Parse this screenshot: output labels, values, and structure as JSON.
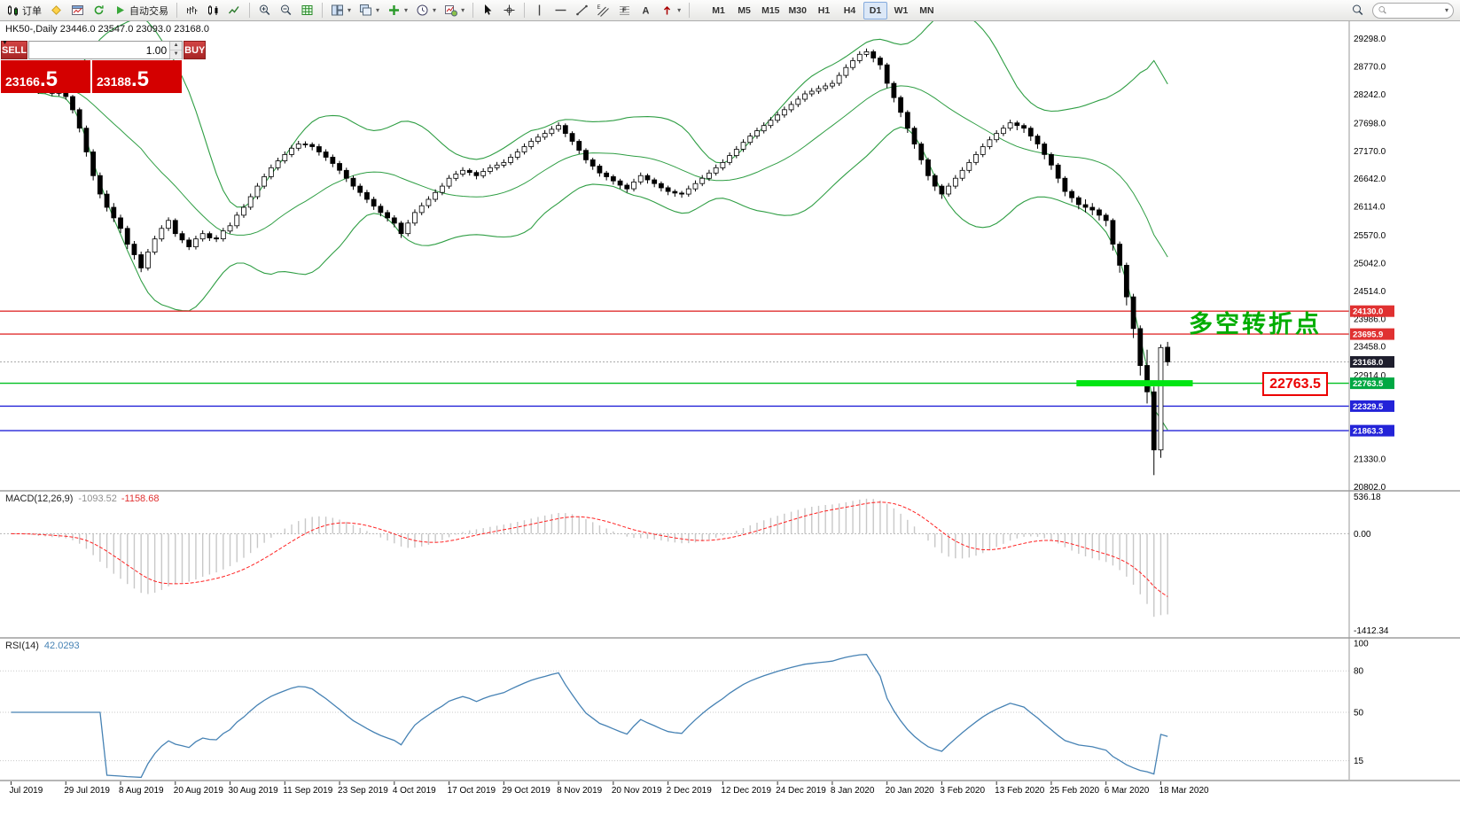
{
  "toolbar": {
    "new_order_label": "订单",
    "autotrading_label": "自动交易",
    "timeframes": [
      "M1",
      "M5",
      "M15",
      "M30",
      "H1",
      "H4",
      "D1",
      "W1",
      "MN"
    ],
    "active_timeframe": "D1",
    "search_value": ""
  },
  "trade_panel": {
    "sell_label": "SELL",
    "buy_label": "BUY",
    "volume": "1.00",
    "sell_price_small": "23166",
    "sell_price_big": ".5",
    "buy_price_small": "23188",
    "buy_price_big": ".5"
  },
  "chart": {
    "symbol_line": "HK50-,Daily  23446.0 23547.0 23093.0 23168.0",
    "annotation_text": "多空转折点",
    "annotation_color": "#00ad00",
    "callout_text": "22763.5",
    "macd_label": "MACD(12,26,9)",
    "macd_value_main": "-1093.52",
    "macd_value_signal": "-1158.68",
    "rsi_label": "RSI(14)",
    "rsi_value": "42.0293"
  },
  "chart_data": {
    "type": "candlestick",
    "symbol": "HK50-",
    "timeframe": "Daily",
    "last_ohlc": {
      "open": 23446.0,
      "high": 23547.0,
      "low": 23093.0,
      "close": 23168.0
    },
    "price_axis_ticks": [
      29298,
      28770,
      28242,
      27698,
      27170,
      26642,
      26114,
      25570,
      25042,
      24514,
      23986,
      23458,
      22914,
      21330,
      20802
    ],
    "x_labels": [
      "Jul 2019",
      "29 Jul 2019",
      "8 Aug 2019",
      "20 Aug 2019",
      "30 Aug 2019",
      "11 Sep 2019",
      "23 Sep 2019",
      "4 Oct 2019",
      "17 Oct 2019",
      "29 Oct 2019",
      "8 Nov 2019",
      "20 Nov 2019",
      "2 Dec 2019",
      "12 Dec 2019",
      "24 Dec 2019",
      "8 Jan 2020",
      "20 Jan 2020",
      "3 Feb 2020",
      "13 Feb 2020",
      "25 Feb 2020",
      "6 Mar 2020",
      "18 Mar 2020"
    ],
    "candles_per_label": 8,
    "candles": [
      [
        28560,
        28620,
        28460,
        28520
      ],
      [
        28520,
        28580,
        28400,
        28450
      ],
      [
        28450,
        28540,
        28410,
        28480
      ],
      [
        28480,
        28520,
        28310,
        28360
      ],
      [
        28360,
        28420,
        28250,
        28300
      ],
      [
        28300,
        28410,
        28260,
        28350
      ],
      [
        28350,
        28400,
        28210,
        28260
      ],
      [
        28260,
        28360,
        28210,
        28300
      ],
      [
        28300,
        28340,
        28140,
        28200
      ],
      [
        28200,
        28230,
        27880,
        27950
      ],
      [
        27950,
        27990,
        27520,
        27600
      ],
      [
        27600,
        27650,
        27060,
        27150
      ],
      [
        27150,
        27200,
        26610,
        26700
      ],
      [
        26700,
        26760,
        26270,
        26350
      ],
      [
        26350,
        26420,
        26020,
        26100
      ],
      [
        26100,
        26180,
        25820,
        25900
      ],
      [
        25900,
        25960,
        25610,
        25700
      ],
      [
        25700,
        25750,
        25310,
        25400
      ],
      [
        25400,
        25460,
        25110,
        25200
      ],
      [
        25200,
        25260,
        24870,
        24950
      ],
      [
        24950,
        25310,
        24900,
        25250
      ],
      [
        25250,
        25560,
        25200,
        25500
      ],
      [
        25500,
        25760,
        25450,
        25700
      ],
      [
        25700,
        25910,
        25650,
        25850
      ],
      [
        25850,
        25890,
        25540,
        25600
      ],
      [
        25600,
        25650,
        25420,
        25480
      ],
      [
        25480,
        25530,
        25290,
        25350
      ],
      [
        25350,
        25560,
        25300,
        25500
      ],
      [
        25500,
        25660,
        25450,
        25600
      ],
      [
        25600,
        25640,
        25460,
        25520
      ],
      [
        25520,
        25570,
        25440,
        25500
      ],
      [
        25500,
        25710,
        25450,
        25650
      ],
      [
        25650,
        25810,
        25600,
        25750
      ],
      [
        25750,
        26010,
        25700,
        25950
      ],
      [
        25950,
        26160,
        25900,
        26100
      ],
      [
        26100,
        26360,
        26050,
        26300
      ],
      [
        26300,
        26560,
        26250,
        26500
      ],
      [
        26500,
        26740,
        26450,
        26680
      ],
      [
        26680,
        26910,
        26630,
        26850
      ],
      [
        26850,
        27040,
        26800,
        26980
      ],
      [
        26980,
        27160,
        26930,
        27100
      ],
      [
        27100,
        27280,
        27050,
        27220
      ],
      [
        27220,
        27360,
        27170,
        27300
      ],
      [
        27300,
        27350,
        27230,
        27290
      ],
      [
        27290,
        27330,
        27180,
        27250
      ],
      [
        27250,
        27300,
        27080,
        27150
      ],
      [
        27150,
        27200,
        26980,
        27050
      ],
      [
        27050,
        27100,
        26860,
        26930
      ],
      [
        26930,
        26980,
        26730,
        26800
      ],
      [
        26800,
        26850,
        26580,
        26650
      ],
      [
        26650,
        26700,
        26430,
        26500
      ],
      [
        26500,
        26550,
        26310,
        26380
      ],
      [
        26380,
        26430,
        26180,
        26250
      ],
      [
        26250,
        26300,
        26050,
        26120
      ],
      [
        26120,
        26170,
        25930,
        26000
      ],
      [
        26000,
        26050,
        25830,
        25900
      ],
      [
        25900,
        25950,
        25720,
        25800
      ],
      [
        25800,
        25840,
        25520,
        25600
      ],
      [
        25600,
        25860,
        25550,
        25800
      ],
      [
        25800,
        26060,
        25750,
        26000
      ],
      [
        26000,
        26190,
        25950,
        26130
      ],
      [
        26130,
        26310,
        26080,
        26250
      ],
      [
        26250,
        26440,
        26200,
        26380
      ],
      [
        26380,
        26560,
        26330,
        26500
      ],
      [
        26500,
        26710,
        26450,
        26650
      ],
      [
        26650,
        26790,
        26600,
        26730
      ],
      [
        26730,
        26860,
        26680,
        26800
      ],
      [
        26800,
        26840,
        26700,
        26760
      ],
      [
        26760,
        26800,
        26630,
        26700
      ],
      [
        26700,
        26840,
        26650,
        26780
      ],
      [
        26780,
        26910,
        26730,
        26850
      ],
      [
        26850,
        26960,
        26800,
        26900
      ],
      [
        26900,
        27010,
        26850,
        26950
      ],
      [
        26950,
        27110,
        26900,
        27050
      ],
      [
        27050,
        27210,
        27000,
        27150
      ],
      [
        27150,
        27310,
        27100,
        27250
      ],
      [
        27250,
        27410,
        27200,
        27350
      ],
      [
        27350,
        27490,
        27300,
        27430
      ],
      [
        27430,
        27560,
        27380,
        27500
      ],
      [
        27500,
        27640,
        27450,
        27580
      ],
      [
        27580,
        27710,
        27530,
        27650
      ],
      [
        27650,
        27690,
        27430,
        27500
      ],
      [
        27500,
        27540,
        27280,
        27350
      ],
      [
        27350,
        27390,
        27110,
        27180
      ],
      [
        27180,
        27220,
        26930,
        27000
      ],
      [
        27000,
        27040,
        26810,
        26880
      ],
      [
        26880,
        26920,
        26680,
        26750
      ],
      [
        26750,
        26790,
        26610,
        26680
      ],
      [
        26680,
        26720,
        26530,
        26600
      ],
      [
        26600,
        26640,
        26450,
        26520
      ],
      [
        26520,
        26560,
        26380,
        26450
      ],
      [
        26450,
        26640,
        26400,
        26580
      ],
      [
        26580,
        26760,
        26530,
        26700
      ],
      [
        26700,
        26740,
        26550,
        26620
      ],
      [
        26620,
        26660,
        26480,
        26550
      ],
      [
        26550,
        26590,
        26400,
        26470
      ],
      [
        26470,
        26510,
        26330,
        26400
      ],
      [
        26400,
        26440,
        26300,
        26370
      ],
      [
        26370,
        26410,
        26280,
        26350
      ],
      [
        26350,
        26510,
        26300,
        26450
      ],
      [
        26450,
        26610,
        26400,
        26550
      ],
      [
        26550,
        26710,
        26500,
        26650
      ],
      [
        26650,
        26810,
        26600,
        26750
      ],
      [
        26750,
        26910,
        26700,
        26850
      ],
      [
        26850,
        27010,
        26800,
        26950
      ],
      [
        26950,
        27140,
        26900,
        27080
      ],
      [
        27080,
        27260,
        27030,
        27200
      ],
      [
        27200,
        27390,
        27150,
        27330
      ],
      [
        27330,
        27510,
        27280,
        27450
      ],
      [
        27450,
        27610,
        27400,
        27550
      ],
      [
        27550,
        27710,
        27500,
        27650
      ],
      [
        27650,
        27810,
        27600,
        27750
      ],
      [
        27750,
        27910,
        27700,
        27850
      ],
      [
        27850,
        28010,
        27800,
        27950
      ],
      [
        27950,
        28110,
        27900,
        28050
      ],
      [
        28050,
        28210,
        28000,
        28150
      ],
      [
        28150,
        28310,
        28100,
        28250
      ],
      [
        28250,
        28360,
        28200,
        28300
      ],
      [
        28300,
        28410,
        28250,
        28350
      ],
      [
        28350,
        28460,
        28300,
        28400
      ],
      [
        28400,
        28510,
        28350,
        28450
      ],
      [
        28450,
        28660,
        28400,
        28600
      ],
      [
        28600,
        28810,
        28550,
        28750
      ],
      [
        28750,
        28940,
        28700,
        28880
      ],
      [
        28880,
        29060,
        28830,
        29000
      ],
      [
        29000,
        29110,
        28950,
        29050
      ],
      [
        29050,
        29090,
        28850,
        28930
      ],
      [
        28930,
        28970,
        28710,
        28800
      ],
      [
        28800,
        28840,
        28360,
        28450
      ],
      [
        28450,
        28490,
        28090,
        28180
      ],
      [
        28180,
        28220,
        27810,
        27900
      ],
      [
        27900,
        27940,
        27510,
        27600
      ],
      [
        27600,
        27640,
        27210,
        27300
      ],
      [
        27300,
        27340,
        26910,
        27000
      ],
      [
        27000,
        27040,
        26610,
        26700
      ],
      [
        26700,
        26740,
        26410,
        26500
      ],
      [
        26500,
        26540,
        26260,
        26350
      ],
      [
        26350,
        26560,
        26300,
        26500
      ],
      [
        26500,
        26710,
        26450,
        26650
      ],
      [
        26650,
        26860,
        26600,
        26800
      ],
      [
        26800,
        27010,
        26750,
        26950
      ],
      [
        26950,
        27160,
        26900,
        27100
      ],
      [
        27100,
        27310,
        27050,
        27250
      ],
      [
        27250,
        27440,
        27200,
        27380
      ],
      [
        27380,
        27560,
        27330,
        27500
      ],
      [
        27500,
        27660,
        27450,
        27600
      ],
      [
        27600,
        27760,
        27550,
        27700
      ],
      [
        27700,
        27740,
        27560,
        27650
      ],
      [
        27650,
        27690,
        27510,
        27600
      ],
      [
        27600,
        27640,
        27360,
        27450
      ],
      [
        27450,
        27490,
        27210,
        27300
      ],
      [
        27300,
        27340,
        27010,
        27100
      ],
      [
        27100,
        27140,
        26810,
        26900
      ],
      [
        26900,
        26940,
        26560,
        26650
      ],
      [
        26650,
        26690,
        26310,
        26400
      ],
      [
        26400,
        26440,
        26190,
        26280
      ],
      [
        26280,
        26320,
        26060,
        26150
      ],
      [
        26150,
        26250,
        26000,
        26100
      ],
      [
        26100,
        26180,
        25950,
        26050
      ],
      [
        26050,
        26090,
        25850,
        25950
      ],
      [
        25950,
        25990,
        25740,
        25850
      ],
      [
        25850,
        25890,
        25280,
        25400
      ],
      [
        25400,
        25450,
        24860,
        25000
      ],
      [
        25000,
        25050,
        24240,
        24400
      ],
      [
        24400,
        24460,
        23620,
        23800
      ],
      [
        23800,
        23860,
        22910,
        23100
      ],
      [
        23100,
        23400,
        22380,
        22600
      ],
      [
        22600,
        22700,
        21020,
        21500
      ],
      [
        21500,
        23500,
        21350,
        23440
      ],
      [
        23446,
        23547,
        23093,
        23168
      ]
    ],
    "bollinger": {
      "period": 20,
      "deviation": 2,
      "color": "#2f9e44"
    },
    "hlines": [
      {
        "price": 24130.0,
        "color": "#e03131",
        "style": "solid",
        "tag": "24130.0",
        "tag_bg": "#e03131"
      },
      {
        "price": 23695.9,
        "color": "#e03131",
        "style": "solid",
        "tag": "23695.9",
        "tag_bg": "#e03131"
      },
      {
        "price": 23168.0,
        "color": "#aaaaaa",
        "style": "dotted",
        "tag": "23168.0",
        "tag_bg": "#1f1f2e"
      },
      {
        "price": 22763.5,
        "color": "#00c020",
        "style": "solid",
        "tag": "22763.5",
        "tag_bg": "#00a843"
      },
      {
        "price": 22329.5,
        "color": "#2323d8",
        "style": "solid",
        "tag": "22329.5",
        "tag_bg": "#2323d8"
      },
      {
        "price": 21863.3,
        "color": "#2323d8",
        "style": "solid",
        "tag": "21863.3",
        "tag_bg": "#2323d8"
      }
    ],
    "highlight_segment": {
      "price": 22763.5,
      "start_index": 156,
      "end_index": 173,
      "color": "#00e512",
      "thickness": 7
    },
    "macd": {
      "params": [
        12,
        26,
        9
      ],
      "scale_labels": [
        "536.18",
        "0.00",
        "-1412.34"
      ],
      "scale_max": 536.18,
      "scale_min": -1412.34,
      "histogram_color": "#c8c8c8",
      "signal_color": "#ff2020"
    },
    "rsi": {
      "period": 14,
      "levels": [
        80,
        50,
        15
      ],
      "scale_labels": [
        "100",
        "80",
        "50",
        "15"
      ],
      "color": "#4682b4"
    }
  }
}
